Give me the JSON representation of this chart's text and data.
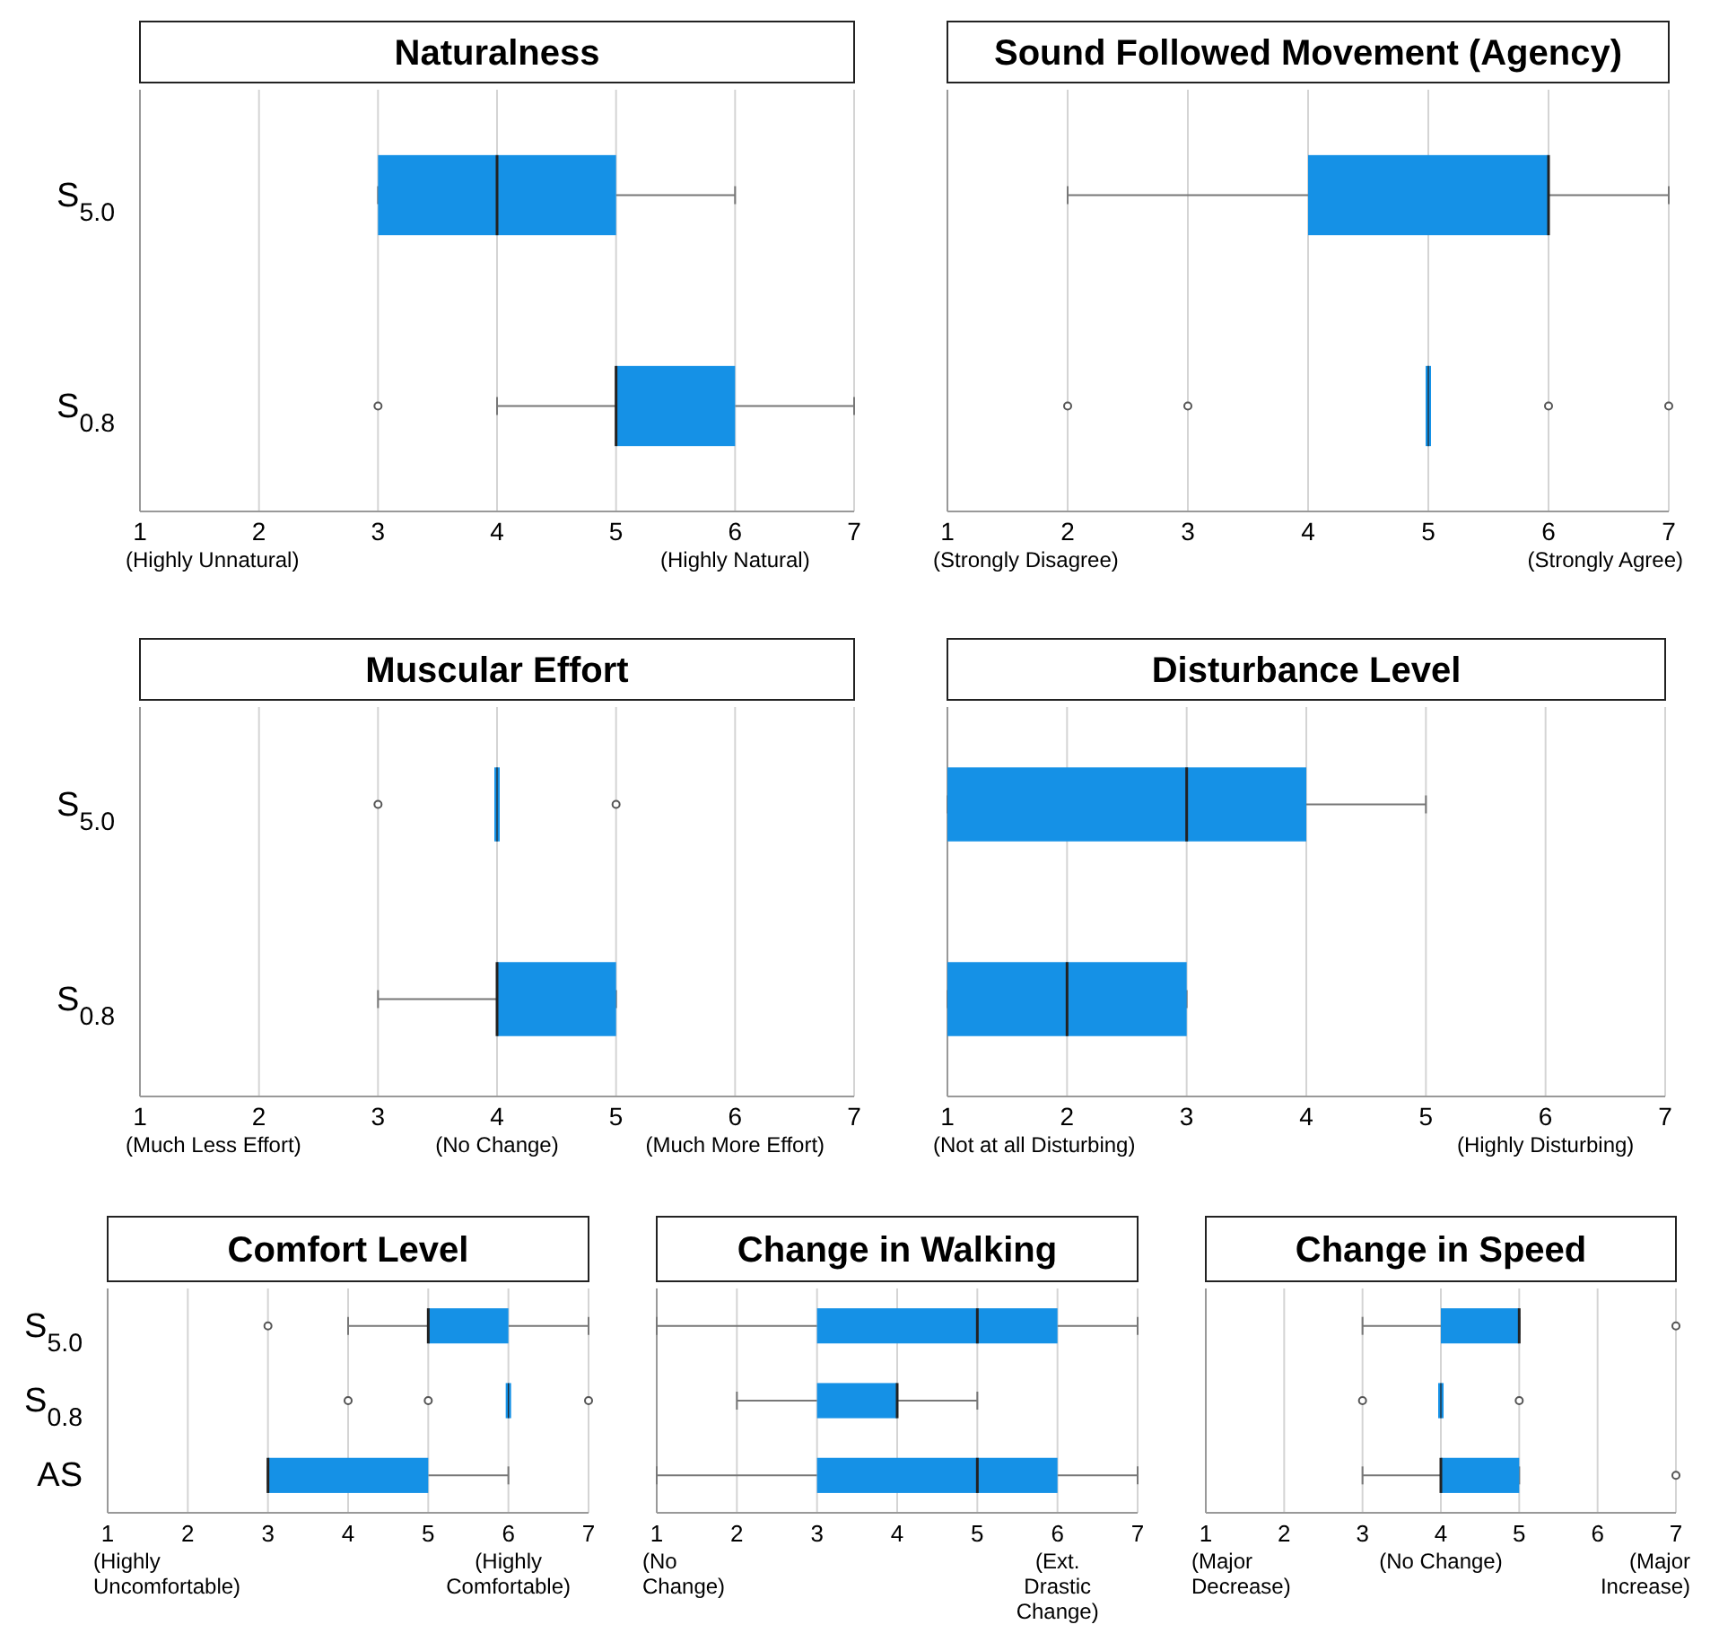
{
  "chart_data": [
    {
      "type": "box",
      "title": "Naturalness",
      "orientation": "horizontal",
      "categories": [
        "S$_{5.0}$",
        "S$_{0.8}$"
      ],
      "xlim": [
        1,
        7
      ],
      "xticks": [
        {
          "value": 1,
          "label": "1\n(Highly Unnatural)"
        },
        2,
        3,
        4,
        5,
        {
          "value": 6,
          "label": "6\n(Highly Natural)"
        },
        7
      ],
      "grid": "x",
      "series": [
        {
          "color": "#1591e6",
          "boxes": [
            {
              "low": 3,
              "q1": 3,
              "median": 4,
              "q3": 5,
              "high": 6
            },
            {
              "low": 4,
              "q1": 5,
              "median": 5,
              "q3": 6,
              "high": 7,
              "outliers": [
                3
              ]
            }
          ]
        }
      ]
    },
    {
      "type": "box",
      "title": "Sound Followed Movement (Agency)",
      "orientation": "horizontal",
      "categories": [
        null,
        null
      ],
      "xlim": [
        1,
        7
      ],
      "xticks": [
        {
          "value": 1,
          "label": "1\n(Strongly Disagree)"
        },
        2,
        3,
        4,
        5,
        6,
        {
          "value": 7,
          "label": "7\n(Strongly Agree)"
        }
      ],
      "grid": "x",
      "series": [
        {
          "color": "#1591e6",
          "boxes": [
            {
              "low": 2,
              "q1": 4,
              "median": 6,
              "q3": 6,
              "high": 7
            },
            {
              "low": 5,
              "q1": 5,
              "median": 5,
              "q3": 5,
              "high": 5,
              "outliers": [
                2,
                3,
                6,
                7
              ]
            }
          ]
        }
      ]
    },
    {
      "type": "box",
      "title": "Muscular Effort",
      "orientation": "horizontal",
      "categories": [
        "S$_{5.0}$",
        "S$_{0.8}$"
      ],
      "xlim": [
        1,
        7
      ],
      "xticks": [
        {
          "value": 1,
          "label": "1\n(Much Less Effort)"
        },
        2,
        3,
        {
          "value": 4,
          "label": "4\n(No Change)"
        },
        5,
        {
          "value": 6,
          "label": "6\n(Much More Effort)"
        },
        7
      ],
      "grid": "x",
      "series": [
        {
          "color": "#1591e6",
          "boxes": [
            {
              "low": 4,
              "q1": 4,
              "median": 4,
              "q3": 4,
              "high": 4,
              "outliers": [
                3,
                5
              ]
            },
            {
              "low": 3,
              "q1": 4,
              "median": 4,
              "q3": 5,
              "high": 5
            }
          ]
        }
      ]
    },
    {
      "type": "box",
      "title": "Disturbance Level",
      "orientation": "horizontal",
      "categories": [
        null,
        null
      ],
      "xlim": [
        1,
        7
      ],
      "xticks": [
        {
          "value": 1,
          "label": "1\n(Not at all Disturbing)"
        },
        2,
        3,
        4,
        5,
        {
          "value": 6,
          "label": "6\n(Highly Disturbing)"
        },
        7
      ],
      "grid": "x",
      "series": [
        {
          "color": "#1591e6",
          "boxes": [
            {
              "low": 1,
              "q1": 1,
              "median": 3,
              "q3": 4,
              "high": 5
            },
            {
              "low": 1,
              "q1": 1,
              "median": 2,
              "q3": 3,
              "high": 3
            }
          ]
        }
      ]
    },
    {
      "type": "box",
      "title": "Comfort Level",
      "orientation": "horizontal",
      "categories": [
        "S$_{5.0}$",
        "S$_{0.8}$",
        "AS"
      ],
      "xlim": [
        1,
        7
      ],
      "xticks": [
        {
          "value": 1,
          "label": "1\n(Highly\nUncomfortable)"
        },
        2,
        3,
        4,
        5,
        {
          "value": 6,
          "label": "6\n(Highly\nComfortable)"
        },
        7
      ],
      "grid": "x",
      "series": [
        {
          "color": "#1591e6",
          "boxes": [
            {
              "low": 4,
              "q1": 5,
              "median": 5,
              "q3": 6,
              "high": 7,
              "outliers": [
                3
              ]
            },
            {
              "low": 6,
              "q1": 6,
              "median": 6,
              "q3": 6,
              "high": 6,
              "outliers": [
                4,
                5,
                7
              ]
            },
            {
              "low": 3,
              "q1": 3,
              "median": 3,
              "q3": 5,
              "high": 6
            }
          ]
        }
      ]
    },
    {
      "type": "box",
      "title": "Change in Walking",
      "orientation": "horizontal",
      "categories": [
        null,
        null,
        null
      ],
      "xlim": [
        1,
        7
      ],
      "xticks": [
        {
          "value": 1,
          "label": "1\n(No\nChange)"
        },
        2,
        3,
        4,
        5,
        {
          "value": 6,
          "label": "6\n(Ext.\nDrastic\nChange)"
        },
        7
      ],
      "grid": "x",
      "series": [
        {
          "color": "#1591e6",
          "boxes": [
            {
              "low": 1,
              "q1": 3,
              "median": 5,
              "q3": 6,
              "high": 7
            },
            {
              "low": 2,
              "q1": 3,
              "median": 4,
              "q3": 4,
              "high": 5
            },
            {
              "low": 1,
              "q1": 3,
              "median": 5,
              "q3": 6,
              "high": 7
            }
          ]
        }
      ]
    },
    {
      "type": "box",
      "title": "Change in Speed",
      "orientation": "horizontal",
      "categories": [
        null,
        null,
        null
      ],
      "xlim": [
        1,
        7
      ],
      "xticks": [
        {
          "value": 1,
          "label": "1\n(Major\nDecrease)"
        },
        2,
        3,
        {
          "value": 4,
          "label": "4\n(No Change)"
        },
        5,
        6,
        {
          "value": 7,
          "label": "7\n(Major\nIncrease)"
        }
      ],
      "grid": "x",
      "series": [
        {
          "color": "#1591e6",
          "boxes": [
            {
              "low": 3,
              "q1": 4,
              "median": 5,
              "q3": 5,
              "high": 5,
              "outliers": [
                7
              ]
            },
            {
              "low": 4,
              "q1": 4,
              "median": 4,
              "q3": 4,
              "high": 4,
              "outliers": [
                3,
                5
              ]
            },
            {
              "low": 3,
              "q1": 4,
              "median": 4,
              "q3": 5,
              "high": 5,
              "outliers": [
                7
              ]
            }
          ]
        }
      ]
    }
  ]
}
